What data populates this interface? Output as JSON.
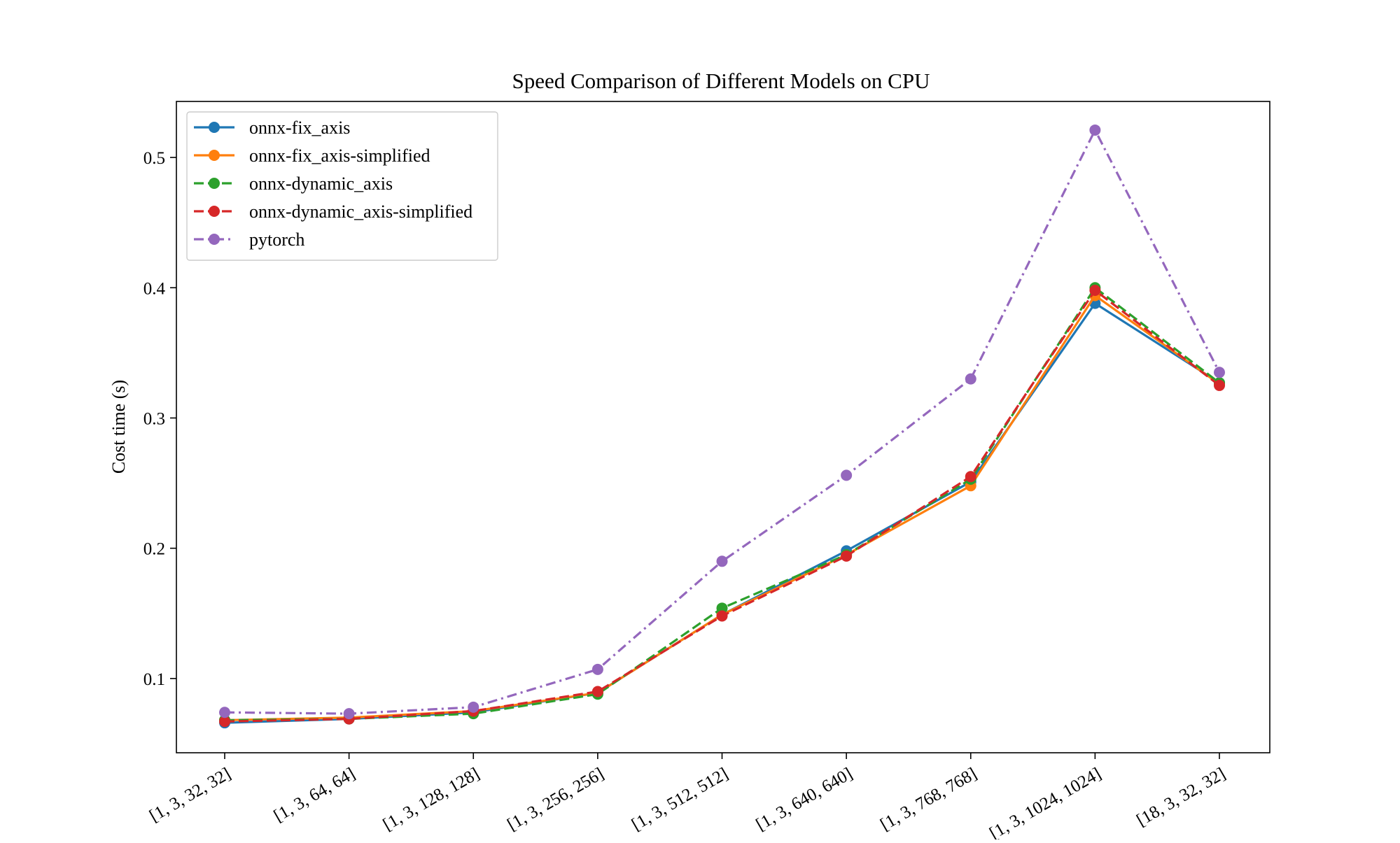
{
  "chart_data": {
    "type": "line",
    "title": "Speed Comparison of Different Models on CPU",
    "xlabel": "",
    "ylabel": "Cost time (s)",
    "categories": [
      "[1, 3, 32, 32]",
      "[1, 3, 64, 64]",
      "[1, 3, 128, 128]",
      "[1, 3, 256, 256]",
      "[1, 3, 512, 512]",
      "[1, 3, 640, 640]",
      "[1, 3, 768, 768]",
      "[1, 3, 1024, 1024]",
      "[18, 3, 32, 32]"
    ],
    "ylim": [
      0.043,
      0.543
    ],
    "yticks": [
      "0.1",
      "0.2",
      "0.3",
      "0.4",
      "0.5"
    ],
    "grid": false,
    "legend_position": "upper-left",
    "series": [
      {
        "name": "onnx-fix_axis",
        "color": "#1f77b4",
        "linestyle": "solid",
        "values": [
          0.066,
          0.069,
          0.074,
          0.089,
          0.149,
          0.198,
          0.251,
          0.388,
          0.327
        ]
      },
      {
        "name": "onnx-fix_axis-simplified",
        "color": "#ff7f0e",
        "linestyle": "solid",
        "values": [
          0.068,
          0.07,
          0.075,
          0.089,
          0.149,
          0.195,
          0.248,
          0.394,
          0.326
        ]
      },
      {
        "name": "onnx-dynamic_axis",
        "color": "#2ca02c",
        "linestyle": "dashed",
        "values": [
          0.068,
          0.069,
          0.073,
          0.088,
          0.154,
          0.195,
          0.253,
          0.4,
          0.327
        ]
      },
      {
        "name": "onnx-dynamic_axis-simplified",
        "color": "#d62728",
        "linestyle": "dashed",
        "values": [
          0.067,
          0.069,
          0.075,
          0.09,
          0.148,
          0.194,
          0.255,
          0.398,
          0.325
        ]
      },
      {
        "name": "pytorch",
        "color": "#9467bd",
        "linestyle": "dashdot",
        "values": [
          0.074,
          0.073,
          0.078,
          0.107,
          0.19,
          0.256,
          0.33,
          0.521,
          0.335
        ]
      }
    ]
  }
}
